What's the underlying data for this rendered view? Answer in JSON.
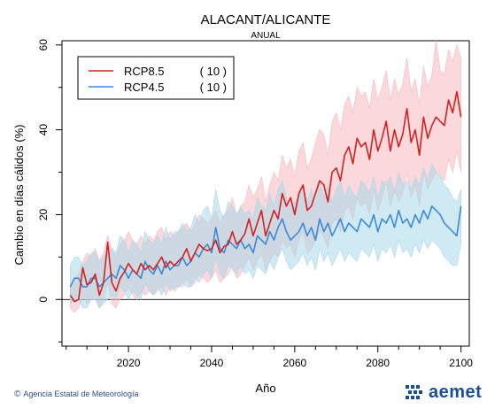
{
  "chart_data": {
    "type": "line",
    "title": "ALACANT/ALICANTE",
    "subtitle": "ANUAL",
    "xlabel": "Año",
    "ylabel": "Cambio en días cálidos (%)",
    "xlim": [
      2004,
      2102
    ],
    "ylim": [
      -11,
      61
    ],
    "xticks": [
      2020,
      2040,
      2060,
      2080,
      2100
    ],
    "yticks": [
      0,
      20,
      40,
      60
    ],
    "zero_line": true,
    "legend_position": "top-left",
    "series": [
      {
        "name": "RCP8.5",
        "count_label": "( 10 )",
        "color": "#d42020",
        "band_color": "#f7b8c0",
        "x_start": 2006,
        "values": [
          1,
          -0.5,
          0,
          7.5,
          3.5,
          4,
          6,
          1,
          4,
          13.5,
          4,
          2,
          5,
          6.5,
          8.5,
          7,
          6,
          8.5,
          7,
          8,
          7,
          8.5,
          10,
          7.5,
          9,
          8,
          9,
          10,
          12,
          9,
          11,
          13,
          12,
          11.5,
          12,
          14,
          11,
          12.5,
          13,
          16,
          13,
          14,
          15.5,
          19,
          15,
          18,
          21,
          15,
          18,
          21,
          19,
          25,
          22,
          24,
          20,
          25,
          27,
          21,
          22,
          25,
          28,
          27,
          23,
          30,
          31,
          28,
          34,
          36,
          32,
          38,
          36,
          37,
          33,
          40,
          35,
          38,
          42,
          35,
          40,
          36,
          39,
          45,
          37,
          40,
          34,
          43,
          38,
          41,
          43,
          42,
          41,
          47,
          44,
          49,
          43
        ],
        "upper": [
          3,
          5,
          6,
          9,
          11,
          10,
          12,
          9,
          11,
          15,
          12,
          10,
          13,
          14,
          16,
          14,
          13,
          15,
          13,
          15,
          14,
          16,
          17,
          14,
          16,
          15,
          16,
          17,
          18,
          16,
          18,
          20,
          19,
          18,
          19,
          21,
          18,
          20,
          21,
          24,
          20,
          22,
          23,
          27,
          24,
          26,
          29,
          23,
          27,
          30,
          28,
          34,
          31,
          33,
          29,
          35,
          37,
          31,
          33,
          37,
          40,
          39,
          34,
          42,
          44,
          40,
          46,
          48,
          44,
          50,
          48,
          49,
          45,
          52,
          47,
          50,
          54,
          47,
          52,
          48,
          51,
          57,
          49,
          52,
          46,
          55,
          50,
          53,
          61,
          54,
          53,
          59,
          56,
          60,
          57
        ],
        "lower": [
          -2,
          -3,
          -2,
          1,
          -1,
          0,
          1,
          -2,
          0,
          4,
          -1,
          -2,
          0,
          1,
          3,
          1,
          0,
          2,
          1,
          2,
          1,
          2,
          3,
          1,
          3,
          2,
          3,
          3,
          5,
          3,
          4,
          6,
          5,
          4,
          5,
          7,
          4,
          5,
          6,
          8,
          5,
          6,
          8,
          10,
          7,
          9,
          11,
          7,
          9,
          11,
          10,
          14,
          12,
          13,
          10,
          14,
          16,
          11,
          12,
          14,
          16,
          15,
          12,
          18,
          19,
          16,
          21,
          22,
          19,
          24,
          22,
          23,
          20,
          26,
          21,
          24,
          28,
          22,
          26,
          23,
          25,
          30,
          24,
          27,
          22,
          30,
          26,
          28,
          30,
          29,
          28,
          33,
          30,
          35,
          30
        ]
      },
      {
        "name": "RCP4.5",
        "count_label": "( 10 )",
        "color": "#3a8ad8",
        "band_color": "#a8d8e8",
        "x_start": 2006,
        "values": [
          3,
          5,
          5,
          3,
          3,
          5,
          5,
          3,
          4,
          5,
          6,
          5,
          8,
          7,
          5,
          7,
          6,
          5,
          9,
          7,
          6,
          8,
          6,
          9,
          7,
          8,
          8,
          10,
          8,
          9,
          11,
          10,
          12,
          13,
          11,
          17,
          12,
          11,
          14,
          13,
          12,
          14,
          12,
          13,
          11,
          15,
          14,
          13,
          16,
          14,
          17,
          19,
          16,
          14,
          15,
          16,
          18,
          15,
          17,
          14,
          19,
          16,
          18,
          15,
          17,
          19,
          16,
          18,
          17,
          16,
          19,
          18,
          17,
          20,
          16,
          19,
          18,
          20,
          17,
          21,
          18,
          19,
          17,
          20,
          18,
          21,
          19,
          22,
          21,
          20,
          18,
          17,
          16,
          15,
          22
        ],
        "upper": [
          8,
          10,
          10,
          8,
          9,
          11,
          11,
          9,
          10,
          11,
          12,
          11,
          15,
          14,
          11,
          14,
          13,
          11,
          16,
          14,
          13,
          15,
          13,
          17,
          14,
          16,
          16,
          18,
          16,
          17,
          20,
          18,
          21,
          22,
          19,
          26,
          21,
          19,
          23,
          22,
          20,
          22,
          20,
          21,
          19,
          24,
          22,
          21,
          25,
          22,
          26,
          28,
          24,
          22,
          23,
          24,
          27,
          23,
          26,
          22,
          28,
          24,
          27,
          23,
          26,
          28,
          24,
          27,
          25,
          24,
          28,
          27,
          25,
          29,
          24,
          28,
          27,
          29,
          25,
          30,
          27,
          28,
          26,
          29,
          27,
          31,
          28,
          32,
          30,
          29,
          27,
          26,
          24,
          23,
          26
        ],
        "lower": [
          -1,
          0,
          0,
          -2,
          -2,
          0,
          0,
          -2,
          -1,
          0,
          1,
          0,
          3,
          2,
          0,
          2,
          1,
          0,
          4,
          2,
          1,
          3,
          1,
          4,
          2,
          3,
          3,
          4,
          3,
          3,
          5,
          4,
          6,
          7,
          5,
          10,
          6,
          5,
          8,
          7,
          6,
          8,
          6,
          7,
          5,
          8,
          7,
          6,
          9,
          7,
          10,
          12,
          9,
          7,
          8,
          9,
          11,
          8,
          10,
          7,
          12,
          9,
          11,
          8,
          10,
          12,
          9,
          11,
          10,
          9,
          12,
          11,
          10,
          13,
          9,
          12,
          11,
          13,
          10,
          14,
          11,
          12,
          10,
          13,
          11,
          14,
          12,
          14,
          13,
          12,
          10,
          9,
          8,
          8,
          13
        ]
      }
    ]
  },
  "footer": {
    "credit_symbol": "©",
    "credit": "Agencia Estatal de Meteorología",
    "logo": "aemet",
    "logo_icon": "aemet-wave-icon"
  }
}
